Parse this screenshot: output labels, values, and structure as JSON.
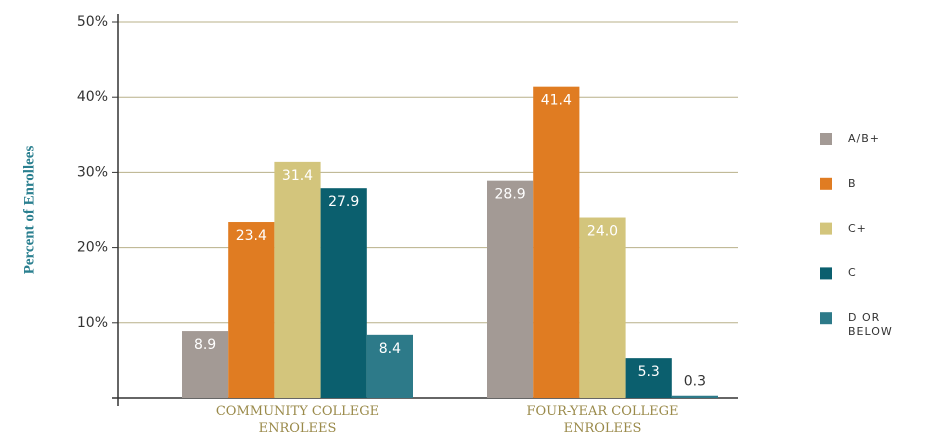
{
  "chart_data": {
    "type": "bar",
    "y_axis_label": "Percent of Enrollees",
    "categories": [
      "COMMUNITY COLLEGE ENROLEES",
      "FOUR-YEAR COLLEGE ENROLEES"
    ],
    "series": [
      {
        "name": "A/B+",
        "color": "#a39a95",
        "values": [
          8.9,
          28.9
        ]
      },
      {
        "name": "B",
        "color": "#e07c22",
        "values": [
          23.4,
          41.4
        ]
      },
      {
        "name": "C+",
        "color": "#d3c57c",
        "values": [
          31.4,
          24.0
        ],
        "value_labels": [
          "31.4",
          "24.0"
        ]
      },
      {
        "name": "C",
        "color": "#0b5f6e",
        "values": [
          27.9,
          5.3
        ]
      },
      {
        "name": "D OR BELOW",
        "color": "#2d7a89",
        "values": [
          8.4,
          0.3
        ]
      }
    ],
    "ylim": [
      0,
      50
    ],
    "yticks": [
      {
        "value": 10,
        "label": "10%"
      },
      {
        "value": 20,
        "label": "20%"
      },
      {
        "value": 30,
        "label": "30%"
      },
      {
        "value": 40,
        "label": "40%"
      },
      {
        "value": 50,
        "label": "50%"
      }
    ],
    "grid": true,
    "legend": "right"
  }
}
